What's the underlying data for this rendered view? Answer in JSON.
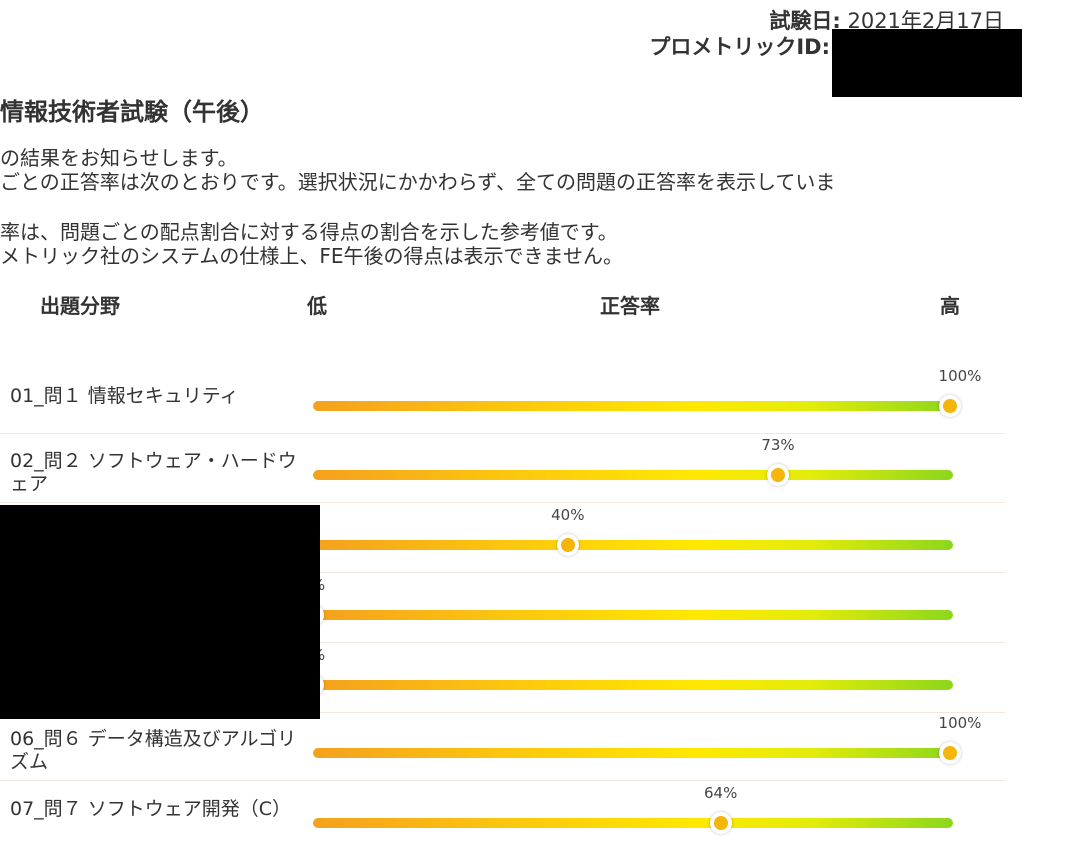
{
  "header": {
    "date_label": "試験日:",
    "date_value": "2021年2月17日",
    "id_label": "プロメトリックID:"
  },
  "title": "情報技術者試験（午後）",
  "paragraphs": [
    "の結果をお知らせします。",
    "ごとの正答率は次のとおりです。選択状況にかかわらず、全ての問題の正答率を表示していま",
    "率は、問題ごとの配点割合に対する得点の割合を示した参考値です。",
    "メトリック社のシステムの仕様上、FE午後の得点は表示できません。"
  ],
  "columns": {
    "field": "出題分野",
    "low": "低",
    "rate": "正答率",
    "high": "高"
  },
  "colors": {
    "bar_start": "#f5a01e",
    "bar_mid": "#ffe800",
    "bar_end": "#8cd61c",
    "knob": "#f5b50a"
  },
  "rows": [
    {
      "label": "01_問１ 情報セキュリティ",
      "percent": 100,
      "percent_label": "100%"
    },
    {
      "label": "02_問２ ソフトウェア・ハードウェア",
      "percent": 73,
      "percent_label": "73%"
    },
    {
      "label": "",
      "percent": 40,
      "percent_label": "40%"
    },
    {
      "label": "",
      "percent": 0,
      "percent_label": "%"
    },
    {
      "label": "",
      "percent": 0,
      "percent_label": "%"
    },
    {
      "label": "06_問６ データ構造及びアルゴリズム",
      "percent": 100,
      "percent_label": "100%"
    },
    {
      "label": "07_問７ ソフトウェア開発（C）",
      "percent": 64,
      "percent_label": "64%"
    }
  ]
}
